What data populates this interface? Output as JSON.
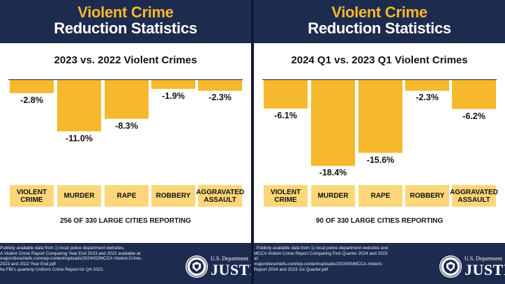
{
  "panels": [
    {
      "header_line1": "Violent Crime",
      "header_line2": "Reduction Statistics",
      "reporting": "256 OF 330 LARGE CITIES REPORTING",
      "source_lines": [
        "Publicly available data from 1) local police department websites,",
        "A Violent Crime Report Comparing Year End 2023 and 2022 available at:",
        "majorcitieschiefs.com/wp-content/uploads/2024/02/MCCA-Violent-Crime-",
        "2023 and 2022 Year End.pdf",
        "he FBI's quarterly Uniform Crime Report for Q4 2023."
      ],
      "dept_small": "U.S. Department",
      "dept_big": "JUSTICE"
    },
    {
      "header_line1": "Violent Crime",
      "header_line2": "Reduction Statistics",
      "reporting": "90 OF 330 LARGE CITIES REPORTING",
      "source_lines": [
        ": Publicly available data from 1) local police department websites and",
        "MCCA Violent Crime Report Comparing First Quarter 2024 and 2023",
        "at:",
        "majorcitieschiefs.com/wp-content/uploads/2024/05/MCCA-Violent-",
        "Report 2024 and 2023 1st Quarter.pdf"
      ],
      "dept_small": "U.S. Department",
      "dept_big": "JUSTIC"
    }
  ],
  "chart_data": [
    {
      "type": "bar",
      "title": "2023 vs. 2022 Violent Crimes",
      "categories": [
        "VIOLENT CRIME",
        "MURDER",
        "RAPE",
        "ROBBERY",
        "AGGRAVATED ASSAULT"
      ],
      "category_lines": [
        [
          "VIOLENT",
          "CRIME"
        ],
        [
          "MURDER"
        ],
        [
          "RAPE"
        ],
        [
          "ROBBERY"
        ],
        [
          "AGGRAVATED",
          "ASSAULT"
        ]
      ],
      "values": [
        -2.8,
        -11.0,
        -8.3,
        -1.9,
        -2.3
      ],
      "value_labels": [
        "-2.8%",
        "-11.0%",
        "-8.3%",
        "-1.9%",
        "-2.3%"
      ],
      "ylim": [
        -20,
        0
      ],
      "bar_color": "#f6b82c",
      "grid": false
    },
    {
      "type": "bar",
      "title": "2024 Q1 vs. 2023 Q1 Violent Crimes",
      "categories": [
        "VIOLENT CRIME",
        "MURDER",
        "RAPE",
        "ROBBERY",
        "AGGRAVATED ASSAULT"
      ],
      "category_lines": [
        [
          "VIOLENT",
          "CRIME"
        ],
        [
          "MURDER"
        ],
        [
          "RAPE"
        ],
        [
          "ROBBERY"
        ],
        [
          "AGGRAVATED",
          "ASSAULT"
        ]
      ],
      "values": [
        -6.1,
        -18.4,
        -15.6,
        -2.3,
        -6.2
      ],
      "value_labels": [
        "-6.1%",
        "-18.4%",
        "-15.6%",
        "-2.3%",
        "-6.2%"
      ],
      "ylim": [
        -20,
        0
      ],
      "bar_color": "#f6b82c",
      "grid": false
    }
  ],
  "colors": {
    "navy": "#1d2b4f",
    "gold": "#f6b82c",
    "label_box": "#fcd679"
  }
}
